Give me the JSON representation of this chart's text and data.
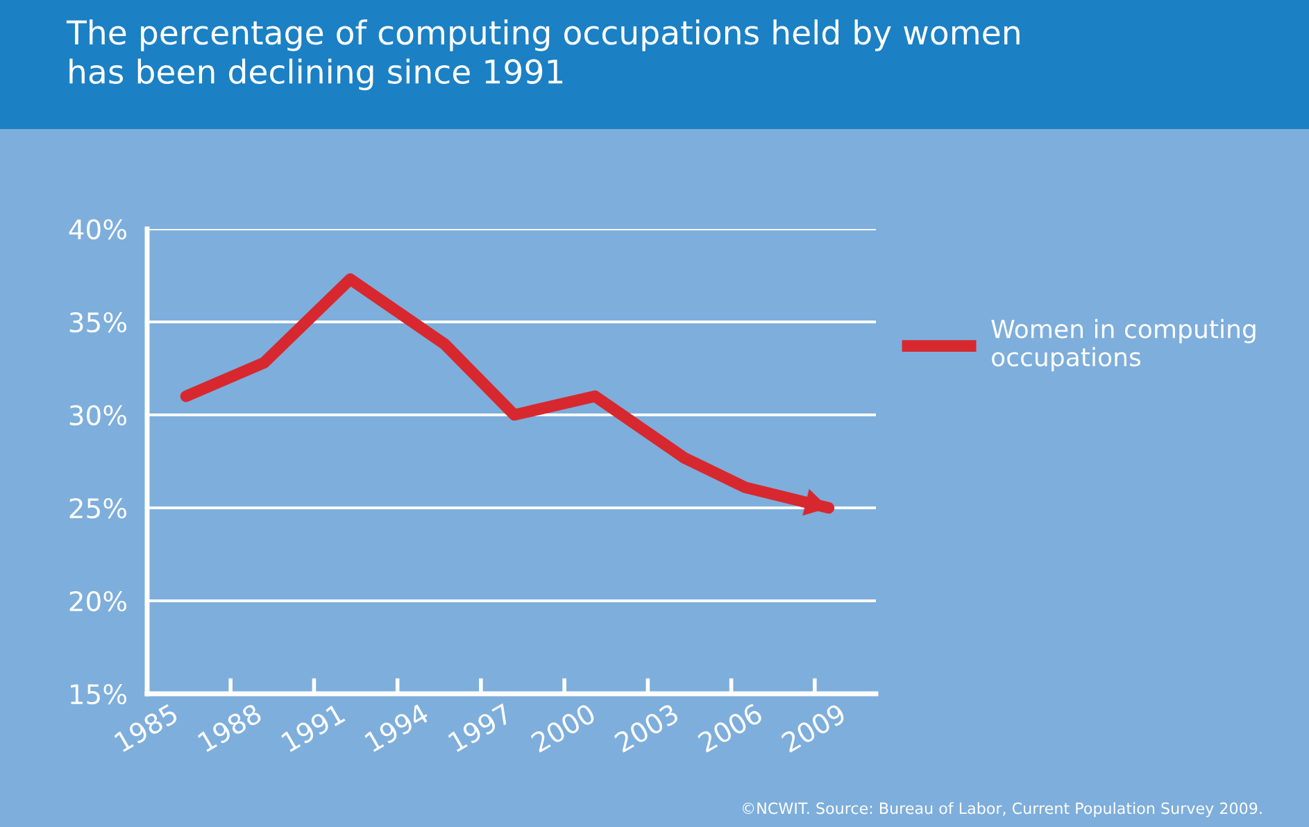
{
  "chart_data": {
    "type": "line",
    "title": "The percentage of computing occupations held by women\nhas been declining since 1991",
    "x": [
      1986.4,
      1989.2,
      1992.3,
      1995.7,
      1998.2,
      2001.1,
      2004.3,
      2006.5,
      2009.5
    ],
    "series": [
      {
        "name": "Women in computing\noccupations",
        "color": "#d7282f",
        "values": [
          31.0,
          32.8,
          37.3,
          33.8,
          30.0,
          31.0,
          27.7,
          26.1,
          25.0
        ]
      }
    ],
    "xlim": [
      1985,
      2011.2
    ],
    "xticks": [
      1985,
      1988,
      1991,
      1994,
      1997,
      2000,
      2003,
      2006,
      2009
    ],
    "ylim": [
      15,
      40
    ],
    "yticks": [
      {
        "value": 15,
        "label": "15%"
      },
      {
        "value": 20,
        "label": "20%"
      },
      {
        "value": 25,
        "label": "25%"
      },
      {
        "value": 30,
        "label": "30%"
      },
      {
        "value": 35,
        "label": "35%"
      },
      {
        "value": 40,
        "label": "40%"
      }
    ],
    "grid": "y",
    "legend": "right",
    "marker": "none",
    "line_style": "solid",
    "annotations": [
      "©NCWIT. Source: Bureau of Labor, Current Population Survey 2009."
    ]
  }
}
